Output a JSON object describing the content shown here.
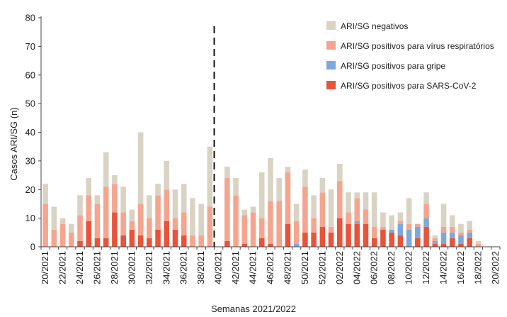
{
  "chart_data": {
    "type": "bar",
    "stacked": true,
    "title": "",
    "xlabel": "Semanas 2021/2022",
    "ylabel": "Casos ARI/SG (n)",
    "ylim": [
      0,
      80
    ],
    "yticks": [
      0,
      10,
      20,
      30,
      40,
      50,
      60,
      70,
      80
    ],
    "grid": false,
    "legend_position": "top-right",
    "divider_after_category": "39/2021",
    "categories": [
      "20/2021",
      "21/2021",
      "22/2021",
      "23/2021",
      "24/2021",
      "25/2021",
      "26/2021",
      "27/2021",
      "28/2021",
      "29/2021",
      "30/2021",
      "31/2021",
      "32/2021",
      "33/2021",
      "34/2021",
      "35/2021",
      "36/2021",
      "37/2021",
      "38/2021",
      "39/2021",
      "40/2021",
      "41/2021",
      "42/2021",
      "43/2021",
      "44/2021",
      "45/2021",
      "46/2021",
      "47/2021",
      "48/2021",
      "49/2021",
      "50/2021",
      "51/2021",
      "52/2021",
      "01/2022",
      "02/2022",
      "03/2022",
      "04/2022",
      "05/2022",
      "06/2022",
      "07/2022",
      "08/2022",
      "09/2022",
      "10/2022",
      "11/2022",
      "12/2022",
      "13/2022",
      "14/2022",
      "15/2022",
      "16/2022",
      "17/2022",
      "18/2022",
      "19/2022",
      "20/2022"
    ],
    "tick_labels": [
      "20/2021",
      "",
      "22/2021",
      "",
      "24/2021",
      "",
      "26/2021",
      "",
      "28/2021",
      "",
      "30/2021",
      "",
      "32/2021",
      "",
      "34/2021",
      "",
      "36/2021",
      "",
      "38/2021",
      "",
      "40/2021",
      "",
      "42/2021",
      "",
      "44/2021",
      "",
      "46/2021",
      "",
      "48/2021",
      "",
      "50/2021",
      "",
      "52/2021",
      "",
      "02/2022",
      "",
      "04/2022",
      "",
      "06/2022",
      "",
      "08/2022",
      "",
      "10/2022",
      "",
      "12/2022",
      "",
      "14/2022",
      "",
      "16/2022",
      "",
      "18/2022",
      "",
      "20/2022"
    ],
    "series": [
      {
        "name": "ARI/SG positivos para SARS-CoV-2",
        "color": "#e8533a",
        "values": [
          0,
          0,
          0,
          0,
          2,
          9,
          3,
          3,
          12,
          4,
          6,
          4,
          3,
          6,
          9,
          6,
          4,
          0,
          0,
          0,
          0,
          2,
          0,
          1,
          0,
          3,
          1,
          0,
          8,
          0,
          5,
          5,
          7,
          5,
          10,
          8,
          8,
          8,
          3,
          6,
          5,
          4,
          0,
          3,
          7,
          1,
          1,
          3,
          1,
          3,
          0,
          0,
          0
        ]
      },
      {
        "name": "ARI/SG positivos para gripe",
        "color": "#7fa7db",
        "values": [
          0,
          0,
          0,
          0,
          0,
          0,
          0,
          0,
          0,
          0,
          0,
          0,
          0,
          0,
          0,
          0,
          0,
          0,
          0,
          0,
          0,
          0,
          0,
          0,
          0,
          0,
          0,
          0,
          0,
          1,
          0,
          0,
          0,
          0,
          0,
          0,
          1,
          0,
          0,
          0,
          1,
          4,
          6,
          4,
          3,
          1,
          4,
          2,
          3,
          2,
          0,
          0,
          0
        ]
      },
      {
        "name": "ARI/SG positivos para vírus respiratórios",
        "color": "#f5a58e",
        "values": [
          15,
          6,
          8,
          5,
          9,
          9,
          12,
          18,
          10,
          8,
          3,
          11,
          7,
          12,
          11,
          4,
          8,
          4,
          4,
          14,
          0,
          22,
          18,
          10,
          12,
          7,
          15,
          16,
          18,
          8,
          16,
          5,
          12,
          2,
          13,
          4,
          8,
          5,
          4,
          1,
          0,
          1,
          2,
          1,
          5,
          1,
          2,
          2,
          1,
          1,
          1,
          0,
          0
        ]
      },
      {
        "name": "ARI/SG negativos",
        "color": "#d8d3c3",
        "values": [
          7,
          8,
          2,
          3,
          7,
          6,
          3,
          12,
          3,
          9,
          4,
          25,
          8,
          4,
          10,
          10,
          10,
          13,
          11,
          21,
          0,
          4,
          6,
          2,
          2,
          16,
          15,
          8,
          2,
          6,
          6,
          8,
          5,
          13,
          6,
          7,
          2,
          6,
          12,
          5,
          5,
          3,
          9,
          0,
          4,
          1,
          8,
          4,
          3,
          3,
          1,
          0,
          0
        ]
      }
    ]
  }
}
